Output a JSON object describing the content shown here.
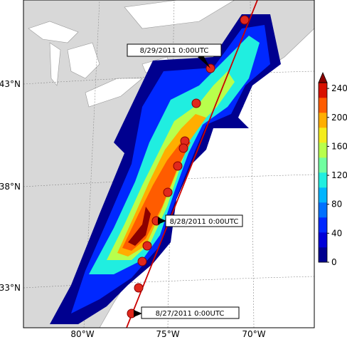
{
  "map": {
    "lat_labels": [
      "43°N",
      "38°N",
      "33°N"
    ],
    "lon_labels": [
      "80°W",
      "75°W",
      "70°W"
    ],
    "annotations": [
      "8/29/2011 0:00UTC",
      "8/28/2011 0:00UTC",
      "8/27/2011 0:00UTC"
    ],
    "colorbar": {
      "lim": [
        0,
        248
      ],
      "ticks": [
        0,
        40,
        80,
        120,
        160,
        200,
        240
      ],
      "colors": [
        "#00008f",
        "#0000d8",
        "#0028ff",
        "#0070ff",
        "#00b4ff",
        "#20eee0",
        "#70ffa0",
        "#b8ff4c",
        "#f4ec1c",
        "#ffae00",
        "#ff5c00",
        "#d81000",
        "#8c0000"
      ]
    }
  }
}
